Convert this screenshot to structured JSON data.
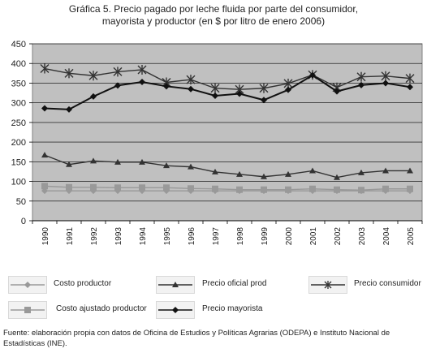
{
  "title_line1": "Gráfica 5. Precio pagado por leche fluida por parte del consumidor,",
  "title_line2": "mayorista y productor (en $ por litro de enero 2006)",
  "source_line1": "Fuente: elaboración propia con datos de Oficina de Estudios y Políticas Agrarias (ODEPA) e Instituto Nacional de",
  "source_line2": "Estadísticas (INE).",
  "colors": {
    "plot_background": "#c0c0c0",
    "consumer": "#333333",
    "wholesale": "#111111",
    "official_producer": "#333333",
    "producer_cost": "#999999",
    "adjusted_producer_cost": "#999999"
  },
  "chart_data": {
    "type": "line",
    "title": "Gráfica 5. Precio pagado por leche fluida por parte del consumidor, mayorista y productor (en $ por litro de enero 2006)",
    "xlabel": "",
    "ylabel": "",
    "x": [
      "1990",
      "1991",
      "1992",
      "1993",
      "1994",
      "1995",
      "1996",
      "1997",
      "1998",
      "1999",
      "2000",
      "2001",
      "2002",
      "2003",
      "2004",
      "2005"
    ],
    "ylim": [
      0,
      450
    ],
    "yticks": [
      "0",
      "50",
      "100",
      "150",
      "200",
      "250",
      "300",
      "350",
      "400",
      "450"
    ],
    "grid": true,
    "legend_position": "bottom",
    "series": [
      {
        "name": "Costo productor",
        "marker": "diamond",
        "values": [
          76,
          76,
          76,
          76,
          76,
          76,
          76,
          76,
          76,
          76,
          76,
          76,
          76,
          76,
          76,
          76
        ]
      },
      {
        "name": "Precio oficial prod",
        "marker": "triangle",
        "values": [
          167,
          143,
          152,
          149,
          149,
          140,
          137,
          124,
          118,
          112,
          118,
          127,
          110,
          122,
          127,
          127
        ]
      },
      {
        "name": "Precio consumidor",
        "marker": "asterisk",
        "values": [
          387,
          375,
          369,
          379,
          384,
          352,
          359,
          337,
          334,
          337,
          349,
          371,
          339,
          366,
          368,
          362
        ]
      },
      {
        "name": "Costo ajustado productor",
        "marker": "square",
        "values": [
          88,
          85,
          85,
          84,
          84,
          84,
          82,
          81,
          79,
          79,
          79,
          81,
          79,
          78,
          81,
          81
        ]
      },
      {
        "name": "Precio mayorista",
        "marker": "diamond",
        "values": [
          286,
          283,
          316,
          344,
          353,
          342,
          335,
          318,
          323,
          307,
          333,
          370,
          329,
          345,
          350,
          340
        ]
      }
    ]
  }
}
